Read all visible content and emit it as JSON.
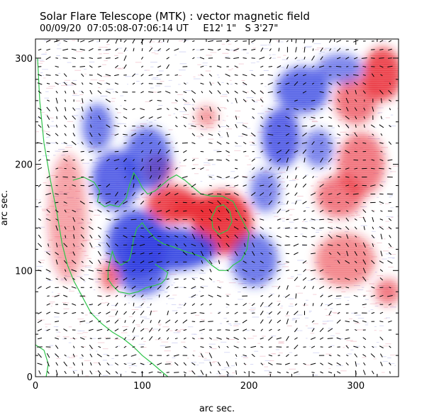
{
  "chart_data": {
    "type": "heatmap",
    "title": "Solar Flare Telescope (MTK) : vector magnetic field",
    "subtitle": "00/09/20  07:05:08-07:06:14 UT     E12' 1\"   S 3'27\"",
    "xlabel": "arc sec.",
    "ylabel": "arc sec.",
    "xlim": [
      0,
      340
    ],
    "ylim": [
      0,
      318
    ],
    "x_ticks": [
      0,
      100,
      200,
      300
    ],
    "y_ticks": [
      0,
      100,
      200,
      300
    ],
    "x_tick_labels": [
      "0",
      "100",
      "200",
      "300"
    ],
    "y_tick_labels": [
      "0",
      "100",
      "200",
      "300"
    ],
    "series": [
      {
        "name": "positive polarity (red)",
        "color": "#e8202a",
        "regions": [
          {
            "cx": 175,
            "cy": 145,
            "rx": 28,
            "ry": 30,
            "strength": 1.0
          },
          {
            "cx": 155,
            "cy": 158,
            "rx": 30,
            "ry": 12,
            "strength": 0.95
          },
          {
            "cx": 128,
            "cy": 162,
            "rx": 24,
            "ry": 18,
            "strength": 0.9
          },
          {
            "cx": 115,
            "cy": 195,
            "rx": 14,
            "ry": 14,
            "strength": 0.7
          },
          {
            "cx": 325,
            "cy": 285,
            "rx": 18,
            "ry": 25,
            "strength": 0.9
          },
          {
            "cx": 300,
            "cy": 260,
            "rx": 20,
            "ry": 22,
            "strength": 0.6
          },
          {
            "cx": 305,
            "cy": 200,
            "rx": 22,
            "ry": 30,
            "strength": 0.55
          },
          {
            "cx": 285,
            "cy": 170,
            "rx": 22,
            "ry": 20,
            "strength": 0.55
          },
          {
            "cx": 290,
            "cy": 110,
            "rx": 28,
            "ry": 25,
            "strength": 0.45
          },
          {
            "cx": 330,
            "cy": 80,
            "rx": 12,
            "ry": 12,
            "strength": 0.55
          },
          {
            "cx": 70,
            "cy": 95,
            "rx": 9,
            "ry": 14,
            "strength": 0.65
          },
          {
            "cx": 160,
            "cy": 245,
            "rx": 10,
            "ry": 10,
            "strength": 0.35
          },
          {
            "cx": 30,
            "cy": 150,
            "rx": 18,
            "ry": 60,
            "strength": 0.25
          }
        ]
      },
      {
        "name": "negative polarity (blue)",
        "color": "#2a3ae0",
        "regions": [
          {
            "cx": 125,
            "cy": 120,
            "rx": 45,
            "ry": 20,
            "strength": 1.0
          },
          {
            "cx": 95,
            "cy": 125,
            "rx": 28,
            "ry": 32,
            "strength": 0.95
          },
          {
            "cx": 75,
            "cy": 185,
            "rx": 22,
            "ry": 28,
            "strength": 0.85
          },
          {
            "cx": 58,
            "cy": 235,
            "rx": 14,
            "ry": 22,
            "strength": 0.7
          },
          {
            "cx": 105,
            "cy": 205,
            "rx": 22,
            "ry": 30,
            "strength": 0.75
          },
          {
            "cx": 100,
            "cy": 95,
            "rx": 22,
            "ry": 18,
            "strength": 0.8
          },
          {
            "cx": 230,
            "cy": 225,
            "rx": 18,
            "ry": 28,
            "strength": 0.85
          },
          {
            "cx": 250,
            "cy": 270,
            "rx": 25,
            "ry": 22,
            "strength": 0.8
          },
          {
            "cx": 265,
            "cy": 215,
            "rx": 14,
            "ry": 18,
            "strength": 0.6
          },
          {
            "cx": 285,
            "cy": 290,
            "rx": 22,
            "ry": 14,
            "strength": 0.6
          },
          {
            "cx": 205,
            "cy": 110,
            "rx": 22,
            "ry": 25,
            "strength": 0.7
          },
          {
            "cx": 215,
            "cy": 175,
            "rx": 14,
            "ry": 20,
            "strength": 0.6
          }
        ]
      }
    ],
    "neutral_lines": [
      {
        "name": "neutral-line-limb",
        "points": [
          [
            2,
            300
          ],
          [
            4,
            260
          ],
          [
            8,
            220
          ],
          [
            14,
            185
          ],
          [
            20,
            155
          ],
          [
            25,
            125
          ],
          [
            30,
            105
          ],
          [
            36,
            90
          ],
          [
            44,
            75
          ],
          [
            52,
            60
          ],
          [
            62,
            50
          ],
          [
            72,
            42
          ],
          [
            82,
            36
          ],
          [
            92,
            28
          ],
          [
            100,
            20
          ],
          [
            110,
            12
          ],
          [
            118,
            5
          ],
          [
            124,
            0
          ]
        ]
      },
      {
        "name": "neutral-line-lower-left",
        "points": [
          [
            0,
            30
          ],
          [
            8,
            25
          ],
          [
            12,
            12
          ],
          [
            10,
            0
          ]
        ]
      },
      {
        "name": "neutral-line-main",
        "points": [
          [
            35,
            185
          ],
          [
            45,
            188
          ],
          [
            55,
            183
          ],
          [
            60,
            175
          ],
          [
            58,
            165
          ],
          [
            65,
            160
          ],
          [
            70,
            162
          ],
          [
            78,
            160
          ],
          [
            85,
            168
          ],
          [
            88,
            180
          ],
          [
            92,
            192
          ],
          [
            96,
            186
          ],
          [
            100,
            178
          ],
          [
            105,
            172
          ],
          [
            112,
            175
          ],
          [
            118,
            180
          ],
          [
            125,
            186
          ],
          [
            132,
            190
          ],
          [
            140,
            185
          ],
          [
            148,
            178
          ],
          [
            155,
            172
          ],
          [
            165,
            170
          ],
          [
            175,
            170
          ],
          [
            185,
            165
          ],
          [
            190,
            155
          ],
          [
            195,
            145
          ],
          [
            200,
            135
          ],
          [
            198,
            120
          ],
          [
            193,
            110
          ],
          [
            185,
            105
          ],
          [
            180,
            100
          ],
          [
            172,
            100
          ],
          [
            165,
            105
          ],
          [
            158,
            112
          ],
          [
            150,
            115
          ],
          [
            140,
            118
          ],
          [
            130,
            122
          ],
          [
            120,
            125
          ],
          [
            112,
            130
          ],
          [
            105,
            138
          ],
          [
            100,
            145
          ],
          [
            95,
            140
          ],
          [
            92,
            130
          ],
          [
            90,
            118
          ],
          [
            88,
            110
          ],
          [
            80,
            105
          ],
          [
            75,
            110
          ],
          [
            72,
            118
          ],
          [
            70,
            110
          ],
          [
            68,
            100
          ],
          [
            68,
            92
          ],
          [
            72,
            86
          ],
          [
            78,
            80
          ],
          [
            88,
            78
          ],
          [
            96,
            80
          ],
          [
            104,
            84
          ],
          [
            112,
            86
          ],
          [
            118,
            88
          ],
          [
            122,
            92
          ],
          [
            124,
            98
          ],
          [
            118,
            102
          ],
          [
            112,
            106
          ]
        ]
      },
      {
        "name": "neutral-line-inner",
        "points": [
          [
            165,
            150
          ],
          [
            170,
            160
          ],
          [
            176,
            162
          ],
          [
            182,
            156
          ],
          [
            184,
            146
          ],
          [
            180,
            138
          ],
          [
            172,
            134
          ],
          [
            166,
            140
          ],
          [
            165,
            150
          ]
        ]
      }
    ],
    "vector_field": "transverse field shown as short black line segments on a regular grid"
  }
}
